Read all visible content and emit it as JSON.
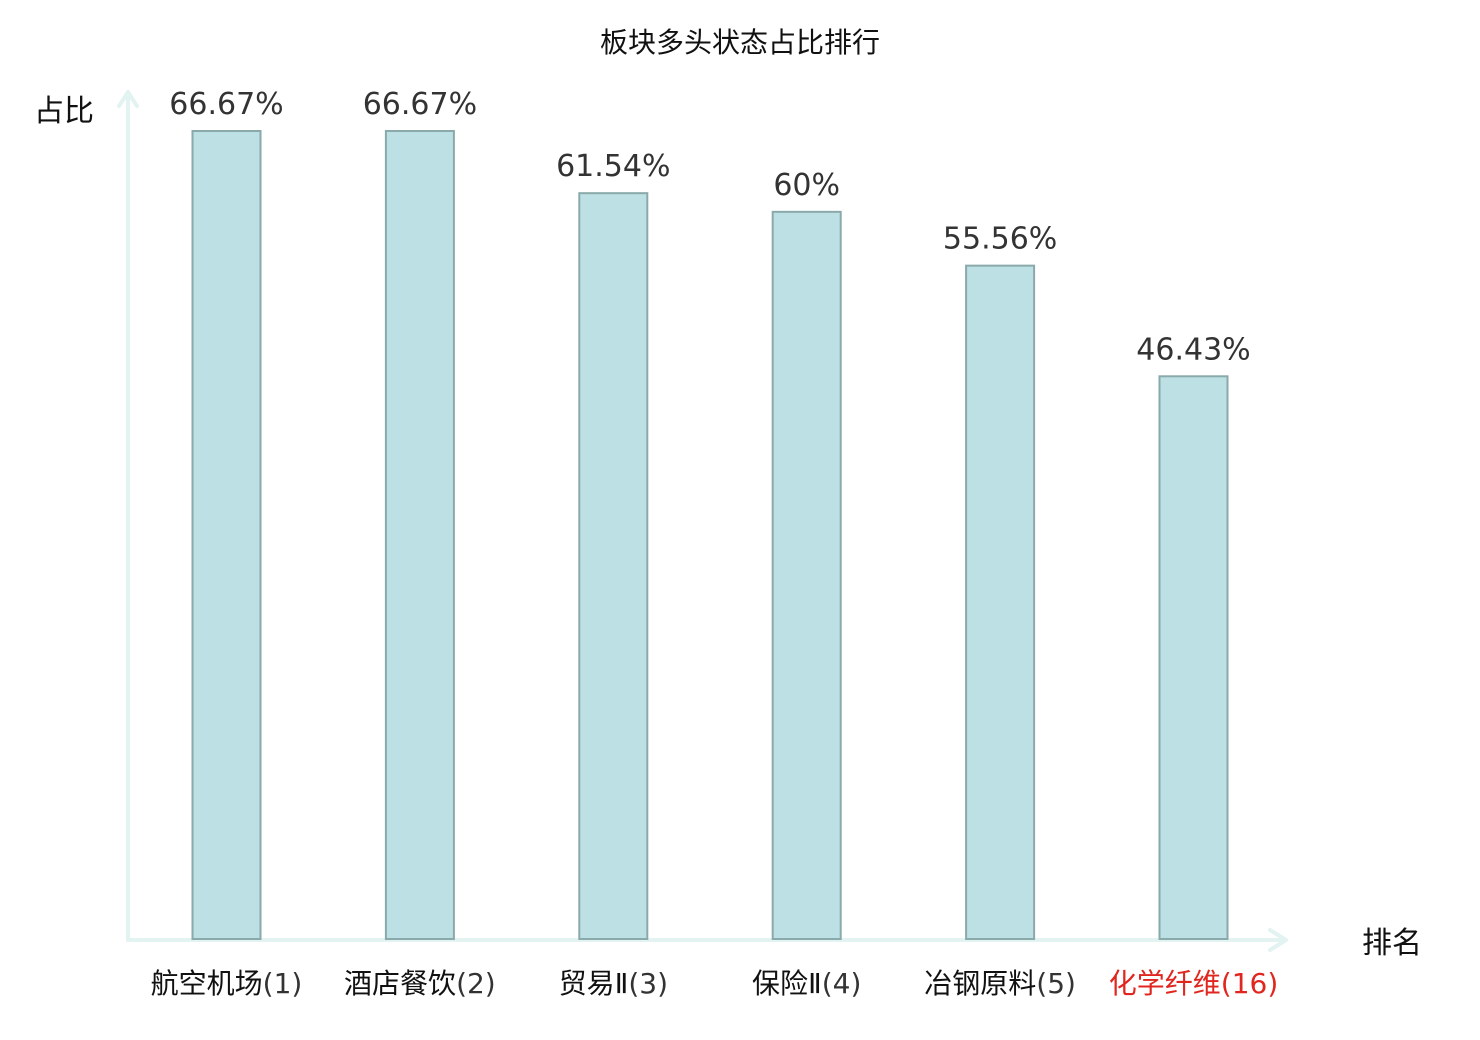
{
  "chart_data": {
    "type": "bar",
    "title": "板块多头状态占比排行",
    "xlabel": "排名",
    "ylabel": "占比",
    "categories": [
      {
        "name": "航空机场",
        "rank": "(1)",
        "highlight": false
      },
      {
        "name": "酒店餐饮",
        "rank": "(2)",
        "highlight": false
      },
      {
        "name": "贸易Ⅱ",
        "rank": "(3)",
        "highlight": false
      },
      {
        "name": "保险Ⅱ",
        "rank": "(4)",
        "highlight": false
      },
      {
        "name": "冶钢原料",
        "rank": "(5)",
        "highlight": false
      },
      {
        "name": "化学纤维",
        "rank": "(16)",
        "highlight": true
      }
    ],
    "values": [
      66.67,
      66.67,
      61.54,
      60,
      55.56,
      46.43
    ],
    "value_labels": [
      "66.67%",
      "66.67%",
      "61.54%",
      "60%",
      "55.56%",
      "46.43%"
    ],
    "ylim": [
      0,
      66.67
    ],
    "grid": false,
    "legend": "none",
    "colors": {
      "bar_fill": "#bce0e3",
      "bar_stroke": "#8aa9aa",
      "axis": "#e2f3f1",
      "tick_label": "#333333",
      "tick_name": "#111111",
      "highlight": "#e0261f"
    }
  }
}
